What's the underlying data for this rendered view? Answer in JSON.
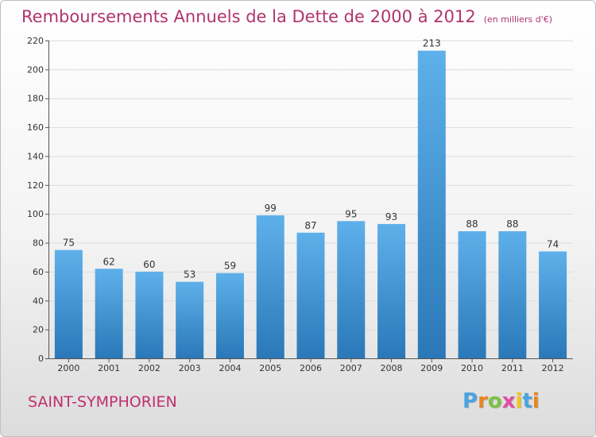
{
  "title": "Remboursements Annuels de la Dette de 2000 à 2012",
  "subtitle": "(en milliers d'€)",
  "city": "SAINT-SYMPHORIEN",
  "logo": {
    "text": "Proxiti",
    "letters": [
      {
        "ch": "P",
        "color": "#4aa3df"
      },
      {
        "ch": "r",
        "color": "#e8851c"
      },
      {
        "ch": "o",
        "color": "#7cc242"
      },
      {
        "ch": "x",
        "color": "#e04da0"
      },
      {
        "ch": "i",
        "color": "#f4c51c"
      },
      {
        "ch": "t",
        "color": "#4aa3df"
      },
      {
        "ch": "i",
        "color": "#e8851c"
      }
    ]
  },
  "colors": {
    "title": "#b0346b",
    "bar_top": "#5eb0ea",
    "bar_bottom": "#2a78b8",
    "grid": "#dddddd",
    "axis_text": "#333333"
  },
  "chart_data": {
    "type": "bar",
    "title": "Remboursements Annuels de la Dette de 2000 à 2012",
    "subtitle": "(en milliers d'€)",
    "categories": [
      "2000",
      "2001",
      "2002",
      "2003",
      "2004",
      "2005",
      "2006",
      "2007",
      "2008",
      "2009",
      "2010",
      "2011",
      "2012"
    ],
    "values": [
      75,
      62,
      60,
      53,
      59,
      99,
      87,
      95,
      93,
      213,
      88,
      88,
      74
    ],
    "ylim": [
      0,
      220
    ],
    "yticks": [
      0,
      20,
      40,
      60,
      80,
      100,
      120,
      140,
      160,
      180,
      200,
      220
    ],
    "grid": true,
    "data_labels": true
  }
}
